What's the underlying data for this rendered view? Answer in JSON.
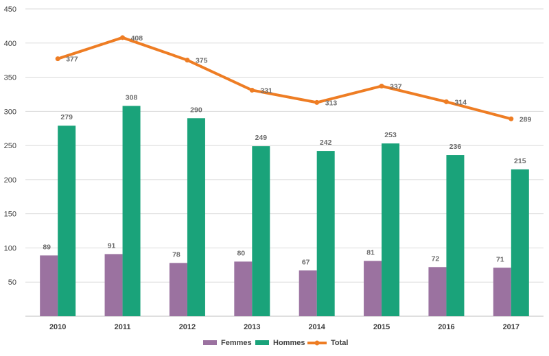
{
  "chart_data": {
    "type": "bar",
    "categories": [
      "2010",
      "2011",
      "2012",
      "2013",
      "2014",
      "2015",
      "2016",
      "2017"
    ],
    "series": [
      {
        "name": "Femmes",
        "type": "bar",
        "color": "#9b72a0",
        "values": [
          89,
          91,
          78,
          80,
          67,
          81,
          72,
          71
        ]
      },
      {
        "name": "Hommes",
        "type": "bar",
        "color": "#1aa37a",
        "values": [
          279,
          308,
          290,
          249,
          242,
          253,
          236,
          215
        ]
      },
      {
        "name": "Total",
        "type": "line",
        "color": "#ee7d24",
        "values": [
          377,
          408,
          375,
          331,
          313,
          337,
          314,
          289
        ]
      }
    ],
    "yticks": [
      "50",
      "100",
      "150",
      "200",
      "250",
      "300",
      "350",
      "400",
      "450"
    ],
    "ylim": [
      0,
      450
    ],
    "grid": true,
    "legend_position": "bottom"
  }
}
